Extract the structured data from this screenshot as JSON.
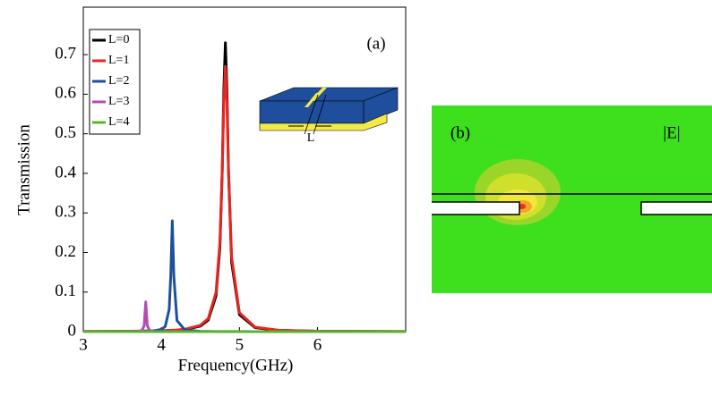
{
  "chart_data": {
    "type": "line",
    "panel_label": "(a)",
    "inset_label": "L",
    "x_label": "Frequency(GHz)",
    "y_label": "Transmission",
    "x": [
      3,
      3.4,
      3.7,
      3.75,
      3.78,
      3.8,
      3.82,
      3.85,
      3.9,
      4.0,
      4.05,
      4.1,
      4.12,
      4.14,
      4.16,
      4.2,
      4.3,
      4.5,
      4.6,
      4.7,
      4.75,
      4.78,
      4.8,
      4.82,
      4.84,
      4.86,
      4.9,
      5.0,
      5.2,
      5.5,
      6.0,
      7.13
    ],
    "series": [
      {
        "name": "L=0",
        "color": "#000000",
        "values": [
          0.0004,
          0.0007,
          0.0012,
          0.0013,
          0.0014,
          0.0014,
          0.0015,
          0.0016,
          0.0017,
          0.0022,
          0.0025,
          0.0028,
          0.003,
          0.0032,
          0.0034,
          0.0038,
          0.0054,
          0.0141,
          0.0293,
          0.09,
          0.213,
          0.408,
          0.609,
          0.73,
          0.609,
          0.408,
          0.175,
          0.043,
          0.0101,
          0.0032,
          0.0011,
          0.0003
        ]
      },
      {
        "name": "L=1",
        "color": "#e8261f",
        "values": [
          0.0005,
          0.0008,
          0.0013,
          0.0015,
          0.0015,
          0.0016,
          0.0017,
          0.0018,
          0.002,
          0.0025,
          0.0028,
          0.0032,
          0.0034,
          0.0036,
          0.0038,
          0.0043,
          0.0061,
          0.016,
          0.033,
          0.099,
          0.226,
          0.409,
          0.578,
          0.67,
          0.578,
          0.409,
          0.188,
          0.048,
          0.0114,
          0.0036,
          0.0012,
          0.0004
        ]
      },
      {
        "name": "L=2",
        "color": "#1f4e9c",
        "values": [
          0.0001,
          0.0002,
          0.0006,
          0.0007,
          0.0009,
          0.001,
          0.0011,
          0.0013,
          0.0019,
          0.0056,
          0.0132,
          0.056,
          0.14,
          0.28,
          0.14,
          0.028,
          0.0043,
          0.0009,
          0.0005,
          0.0004,
          0.0003,
          0.0003,
          0.0003,
          0.0003,
          0.0002,
          0.0002,
          0.0002,
          0.0002,
          0.0001,
          0.0001,
          0,
          0
        ]
      },
      {
        "name": "L=3",
        "color": "#b44bb4",
        "values": [
          0,
          0,
          0.0007,
          0.0029,
          0.015,
          0.075,
          0.015,
          0.0029,
          0.0007,
          0.0002,
          0.0001,
          0.0001,
          0.0001,
          0.0001,
          0.0001,
          0.0001,
          0,
          0,
          0,
          0,
          0,
          0,
          0,
          0,
          0,
          0,
          0,
          0,
          0,
          0,
          0,
          0
        ]
      },
      {
        "name": "L=4",
        "color": "#5ab432",
        "values": [
          0,
          0,
          0,
          0,
          0,
          0,
          0,
          0,
          0,
          0,
          0,
          0,
          0,
          0,
          0,
          0,
          0,
          0,
          0,
          0,
          0,
          0,
          0,
          0,
          0,
          0,
          0,
          0,
          0,
          0,
          0,
          0
        ]
      }
    ],
    "xlim": [
      3,
      7.13
    ],
    "xticks": [
      3,
      4,
      5,
      6
    ],
    "ylim": [
      0,
      0.82
    ],
    "yticks": [
      0,
      0.1,
      0.2,
      0.3,
      0.4,
      0.5,
      0.6,
      0.7
    ],
    "grid": false,
    "legend": "upper left"
  },
  "panel_b": {
    "panel_label": "(b)",
    "field_label": "|E|"
  }
}
